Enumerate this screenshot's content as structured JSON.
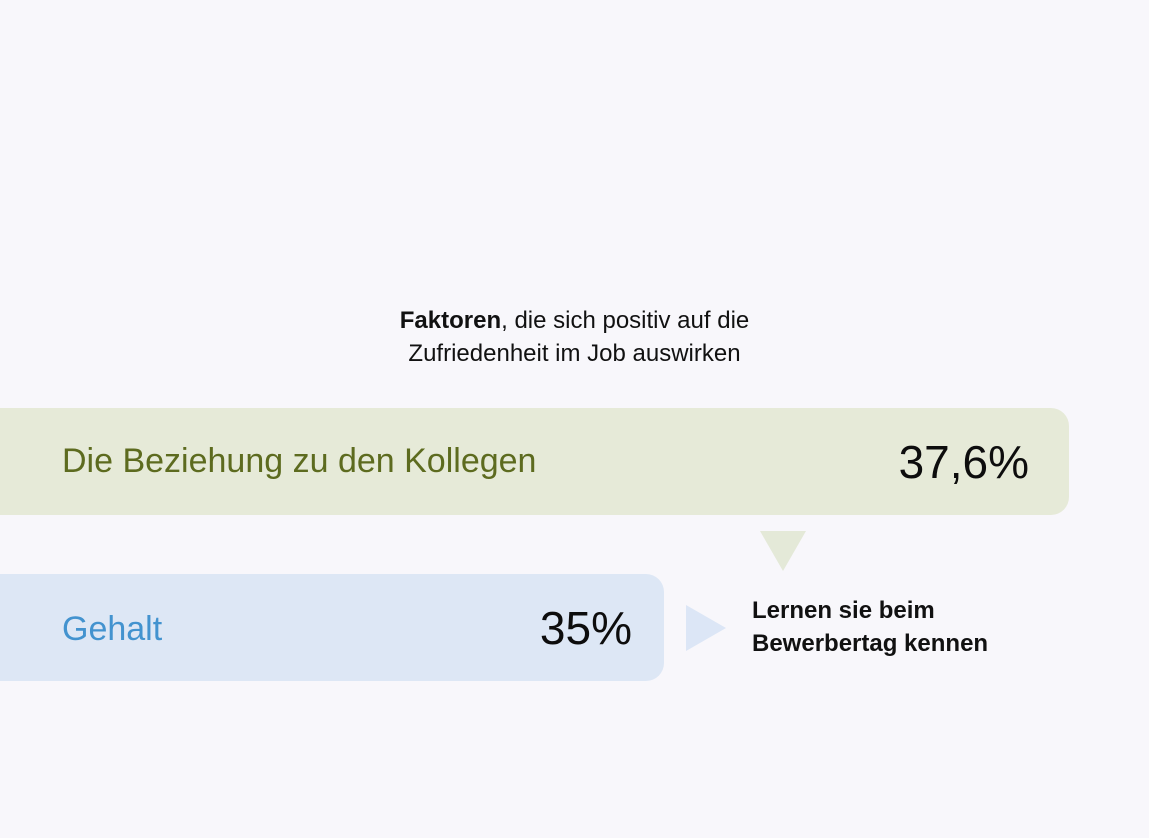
{
  "chart_data": {
    "type": "bar",
    "orientation": "horizontal",
    "title_bold": "Faktoren",
    "title_rest_line1": ", die sich positiv auf die",
    "title_line2": "Zufriedenheit im Job auswirken",
    "categories": [
      "Die Beziehung zu den Kollegen",
      "Gehalt"
    ],
    "values": [
      37.6,
      35
    ],
    "value_labels": [
      "37,6%",
      "35%"
    ],
    "bar_colors": [
      "#e6ead8",
      "#dde7f5"
    ],
    "label_colors": [
      "#5d6b1f",
      "#4393cf"
    ],
    "annotation": [
      "Lernen sie beim",
      "Bewerbertag kennen"
    ]
  }
}
